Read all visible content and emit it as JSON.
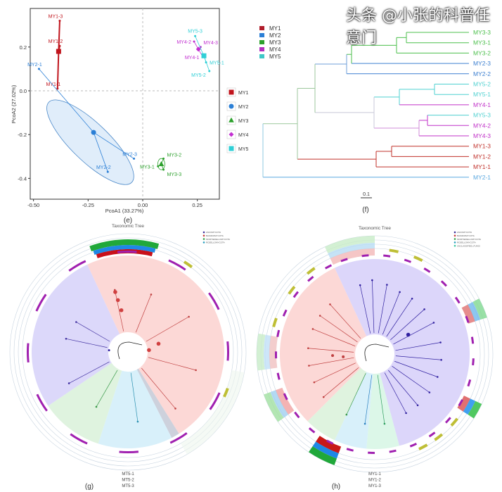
{
  "chart_data": [
    {
      "type": "scatter",
      "panel": "(e)",
      "xlabel": "PcoA1 (33.27%)",
      "ylabel": "PcoA2 (27.02%)",
      "xlim": [
        -0.52,
        0.35
      ],
      "ylim": [
        -0.49,
        0.37
      ],
      "xticks": [
        "-0.50",
        "-0.25",
        "0.00",
        "0.25"
      ],
      "xtick_values": [
        -0.5,
        -0.25,
        0,
        0.25
      ],
      "yticks": [
        "0.2",
        "0.0",
        "-0.2",
        "-0.4"
      ],
      "ytick_values": [
        0.2,
        0,
        -0.2,
        -0.4
      ],
      "legend_position": "right",
      "series": [
        {
          "name": "MY1",
          "color": "#c0141c",
          "shape": "square",
          "centroid": [
            -0.385,
            0.18
          ],
          "points": [
            {
              "label": "MY1-1",
              "x": -0.39,
              "y": 0.01
            },
            {
              "label": "MY1-2",
              "x": -0.38,
              "y": 0.205
            },
            {
              "label": "MY1-3",
              "x": -0.38,
              "y": 0.32
            }
          ]
        },
        {
          "name": "MY2",
          "color": "#2b7fd6",
          "shape": "circle",
          "centroid": [
            -0.225,
            -0.19
          ],
          "points": [
            {
              "label": "MY2-1",
              "x": -0.475,
              "y": 0.1
            },
            {
              "label": "MY2-2",
              "x": -0.16,
              "y": -0.37
            },
            {
              "label": "MY2-3",
              "x": -0.04,
              "y": -0.31
            }
          ]
        },
        {
          "name": "MY3",
          "color": "#2ca02c",
          "shape": "triangle",
          "centroid": [
            0.085,
            -0.335
          ],
          "points": [
            {
              "label": "MY3-1",
              "x": 0.07,
              "y": -0.345
            },
            {
              "label": "MY3-2",
              "x": 0.095,
              "y": -0.31
            },
            {
              "label": "MY3-3",
              "x": 0.095,
              "y": -0.36
            }
          ]
        },
        {
          "name": "MY4",
          "color": "#c22fd0",
          "shape": "diamond",
          "centroid": [
            0.255,
            0.19
          ],
          "points": [
            {
              "label": "MY4-1",
              "x": 0.275,
              "y": 0.155
            },
            {
              "label": "MY4-2",
              "x": 0.235,
              "y": 0.225
            },
            {
              "label": "MY4-3",
              "x": 0.265,
              "y": 0.2
            }
          ]
        },
        {
          "name": "MY5",
          "color": "#2fcfd6",
          "shape": "square",
          "centroid": [
            0.28,
            0.16
          ],
          "points": [
            {
              "label": "MY5-1",
              "x": 0.29,
              "y": 0.13
            },
            {
              "label": "MY5-2",
              "x": 0.305,
              "y": 0.09
            },
            {
              "label": "MY5-3",
              "x": 0.24,
              "y": 0.25
            }
          ]
        }
      ]
    },
    {
      "type": "dendrogram",
      "panel": "(f)",
      "scale_bar": "0.1",
      "legend": [
        {
          "name": "MY1",
          "color": "#b01c2a"
        },
        {
          "name": "MY2",
          "color": "#2b7fd6"
        },
        {
          "name": "MY3",
          "color": "#2ca02c"
        },
        {
          "name": "MY4",
          "color": "#b22fbf"
        },
        {
          "name": "MY5",
          "color": "#3fc8c8"
        }
      ],
      "leaves": [
        {
          "label": "MY3-3",
          "color": "#4cbf4c"
        },
        {
          "label": "MY3-1",
          "color": "#4cbf4c"
        },
        {
          "label": "MY3-2",
          "color": "#4cbf4c"
        },
        {
          "label": "MY2-3",
          "color": "#3c7fd0"
        },
        {
          "label": "MY2-2",
          "color": "#3c7fd0"
        },
        {
          "label": "MY5-2",
          "color": "#4fd0d0"
        },
        {
          "label": "MY5-1",
          "color": "#4fd0d0"
        },
        {
          "label": "MY4-1",
          "color": "#c030c8"
        },
        {
          "label": "MY5-3",
          "color": "#4fd0d0"
        },
        {
          "label": "MY4-2",
          "color": "#c030c8"
        },
        {
          "label": "MY4-3",
          "color": "#c030c8"
        },
        {
          "label": "MY1-3",
          "color": "#c0302a"
        },
        {
          "label": "MY1-2",
          "color": "#c0302a"
        },
        {
          "label": "MY1-1",
          "color": "#c0302a"
        },
        {
          "label": "MY2-1",
          "color": "#5aa8e0"
        }
      ]
    },
    {
      "type": "circular-tree",
      "panel": "(g)",
      "title": "Taxonomic Tree",
      "legend": [
        {
          "name": "ASCOMYCOTA",
          "color": "#3b2f9a"
        },
        {
          "name": "BASIDIOMYCOTA",
          "color": "#c8393a"
        },
        {
          "name": "MORTIERELLOMYCOTA",
          "color": "#3aa54a"
        },
        {
          "name": "ROZELLOMYCOTA",
          "color": "#2aa0c0"
        }
      ],
      "ring_labels": [
        "MT5-1",
        "MT5-2",
        "MT5-3"
      ]
    },
    {
      "type": "circular-tree",
      "panel": "(h)",
      "title": "Taxonomic Tree",
      "legend": [
        {
          "name": "ASCOMYCOTA",
          "color": "#3b2f9a"
        },
        {
          "name": "BASIDIOMYCOTA",
          "color": "#c8393a"
        },
        {
          "name": "MORTIERELLOMYCOTA",
          "color": "#3aa54a"
        },
        {
          "name": "ROZELLOMYCOTA",
          "color": "#2aa0c0"
        },
        {
          "name": "UNCLASSIFIED_FUNGI",
          "color": "#3fc8a0"
        }
      ],
      "ring_labels": [
        "MY1-1",
        "MY1-2",
        "MY1-3"
      ]
    }
  ],
  "watermark": "头条 @小张的科普任意门"
}
